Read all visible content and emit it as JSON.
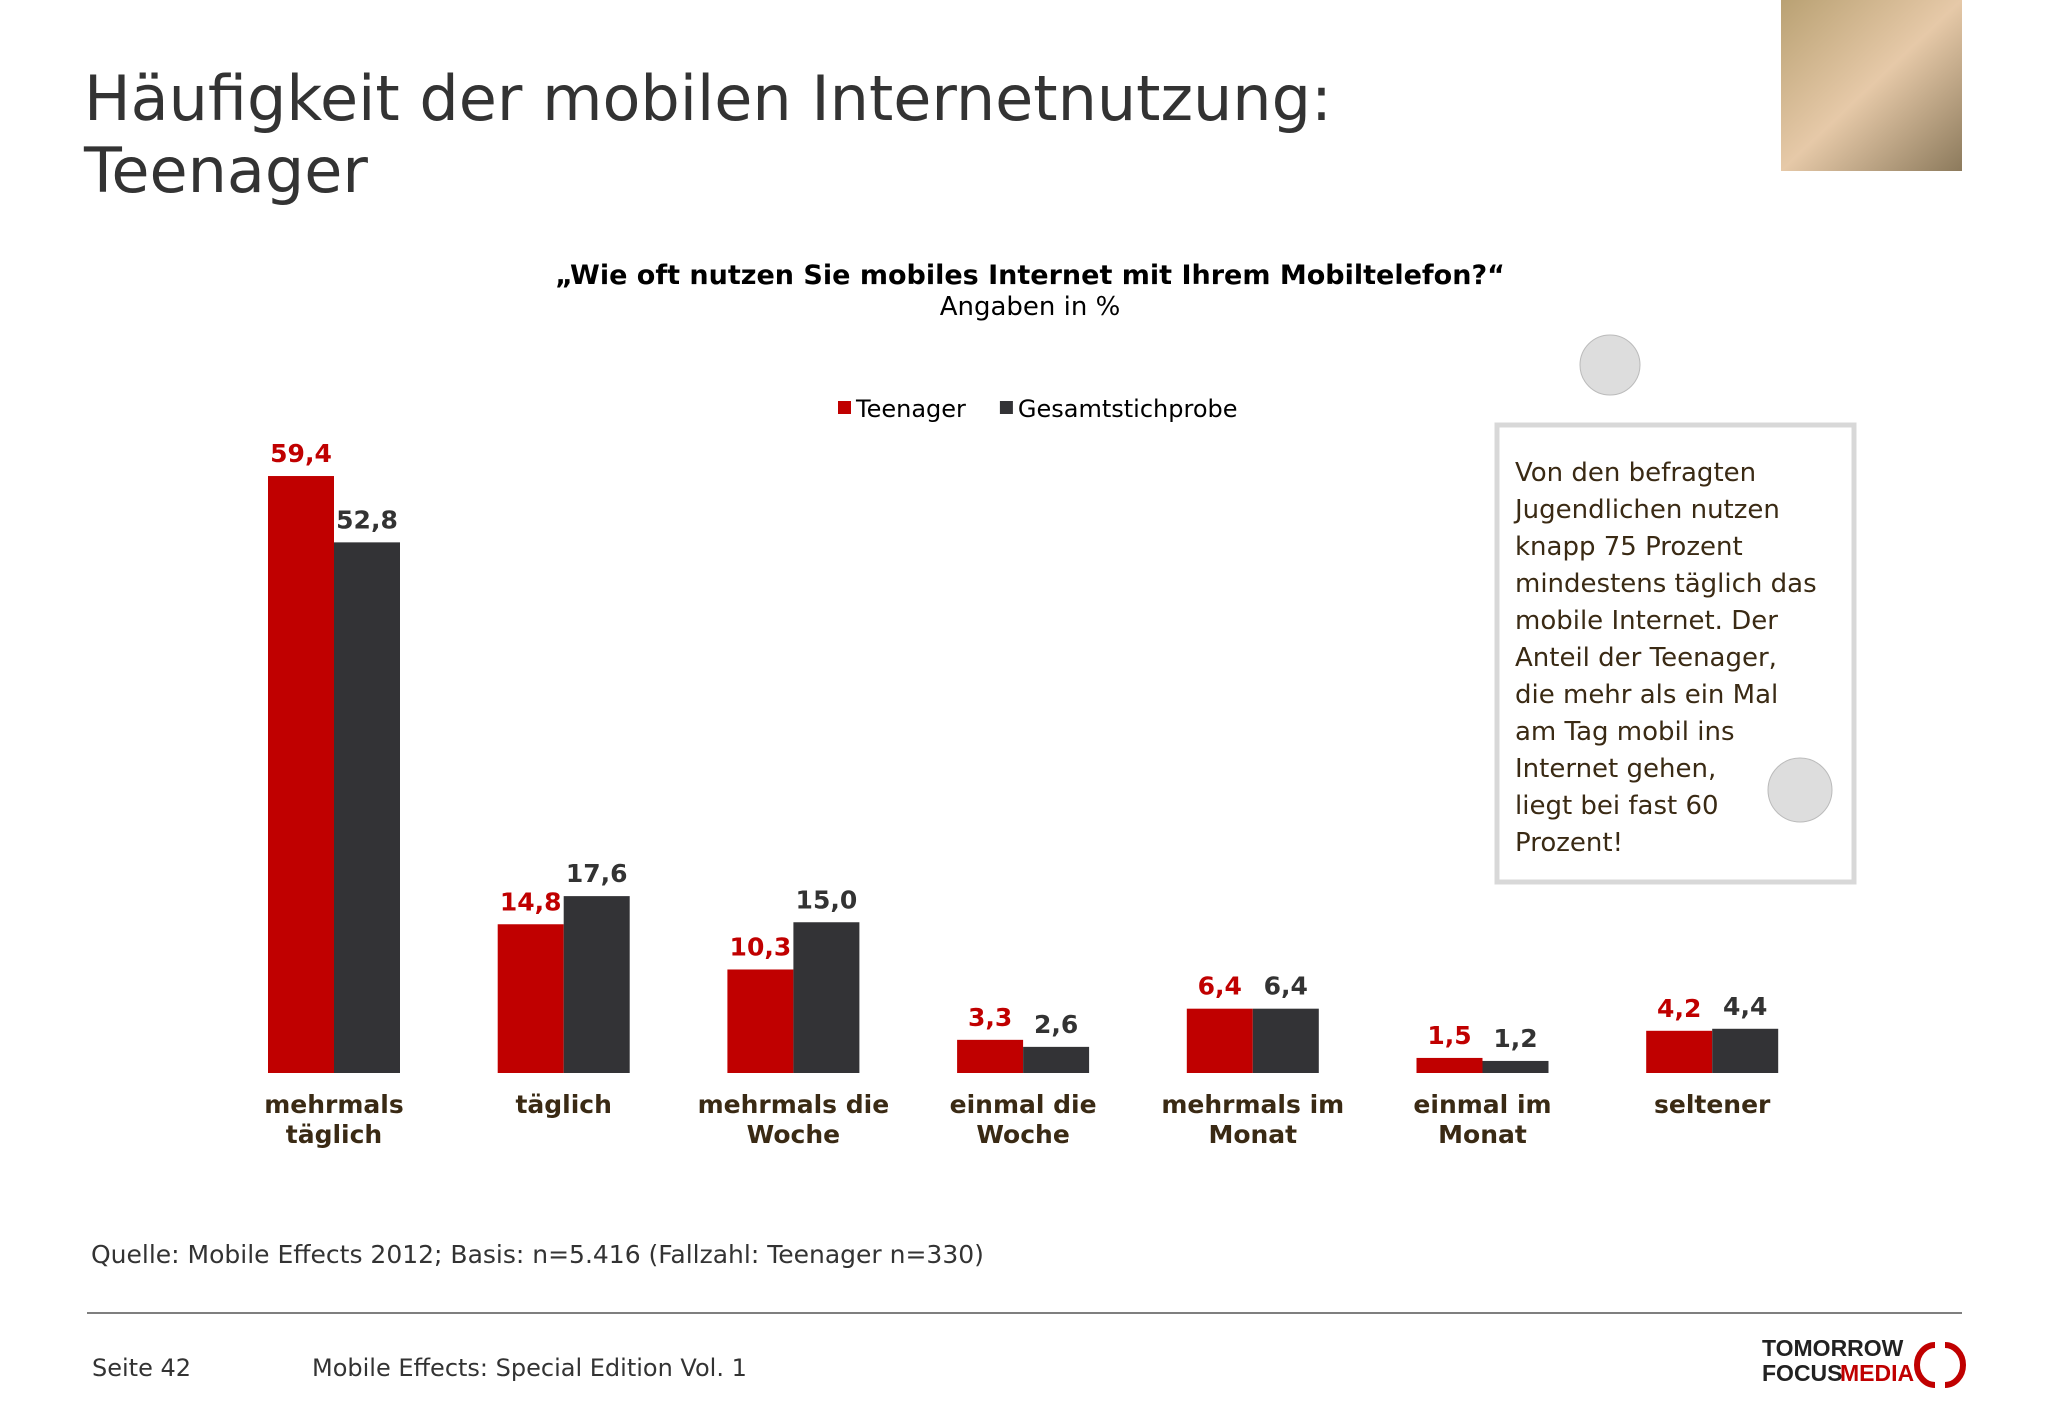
{
  "header": {
    "title_lines": [
      "Häufigkeit der mobilen Internetnutzung:",
      "Teenager"
    ]
  },
  "chart_data": {
    "type": "bar",
    "title": "„Wie oft nutzen Sie mobiles Internet mit Ihrem Mobiltelefon?“",
    "subtitle": "Angaben in %",
    "categories": [
      "mehrmals\ntäglich",
      "täglich",
      "mehrmals die\nWoche",
      "einmal die\nWoche",
      "mehrmals im\nMonat",
      "einmal im Monat",
      "seltener"
    ],
    "series": [
      {
        "name": "Teenager",
        "color": "#c00000",
        "values": [
          59.4,
          14.8,
          10.3,
          3.3,
          6.4,
          1.5,
          4.2
        ],
        "value_labels": [
          "59,4",
          "14,8",
          "10,3",
          "3,3",
          "6,4",
          "1,5",
          "4,2"
        ]
      },
      {
        "name": "Gesamtstichprobe",
        "color": "#333336",
        "values": [
          52.8,
          17.6,
          15.0,
          2.6,
          6.4,
          1.2,
          4.4
        ],
        "value_labels": [
          "52,8",
          "17,6",
          "15,0",
          "2,6",
          "6,4",
          "1,2",
          "4,4"
        ]
      }
    ],
    "legend": "top"
  },
  "text_box": {
    "lines": [
      "Von den befragten",
      "Jugendlichen nutzen",
      "knapp 75 Prozent",
      "mindestens täglich das",
      "mobile Internet. Der",
      "Anteil der Teenager,",
      "die mehr als ein Mal",
      "am Tag mobil ins",
      "Internet gehen,",
      "liegt bei fast 60",
      "Prozent!"
    ]
  },
  "source": "Quelle: Mobile Effects 2012; Basis: n=5.416 (Fallzahl: Teenager n=330)",
  "footer": {
    "page": "Seite 42",
    "publication": "Mobile Effects: Special Edition Vol. 1",
    "logo": {
      "line1": "TOMORROW",
      "line2a": "FOCUS",
      "line2b": "MEDIA"
    }
  }
}
